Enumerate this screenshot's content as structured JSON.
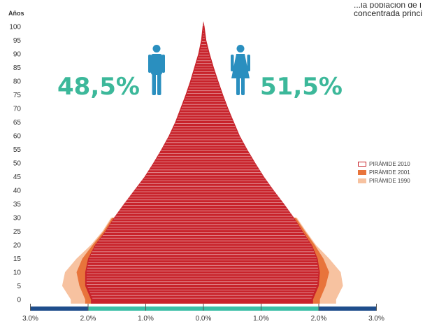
{
  "top_note": {
    "line1": "...la población de l",
    "line2": "concentrada princi"
  },
  "male": {
    "percent": "48,5%",
    "icon": "man-icon"
  },
  "female": {
    "percent": "51,5%",
    "icon": "woman-icon"
  },
  "colors": {
    "p2010": "#c8232b",
    "p2001": "#e8743b",
    "p1990": "#f7c2a0",
    "teal": "#3cb89a",
    "icon_blue": "#2a8fbf",
    "axis_dark": "#1f4e8c",
    "axis_teal": "#3bbfa6"
  },
  "chart_data": {
    "type": "population-pyramid",
    "ylabel": "Años",
    "yticks": [
      0,
      5,
      10,
      15,
      20,
      25,
      30,
      35,
      40,
      45,
      50,
      55,
      60,
      65,
      70,
      75,
      80,
      85,
      90,
      95,
      100
    ],
    "ylim": [
      0,
      102
    ],
    "xlim": [
      -3.0,
      3.0
    ],
    "xticks": [
      "3.0%",
      "2.0%",
      "1.0%",
      "0.0%",
      "1.0%",
      "2.0%",
      "3.0%"
    ],
    "legend": [
      "PIRÁMIDE 2010",
      "PIRÁMIDE 2001",
      "PIRÁMIDE 1990"
    ],
    "legend_position": "right",
    "series": [
      {
        "name": "PIRÁMIDE 1990",
        "age": [
          0,
          5,
          10,
          15,
          20,
          25,
          30
        ],
        "male": [
          2.3,
          2.45,
          2.4,
          2.2,
          1.95,
          1.75,
          1.6
        ],
        "female": [
          2.3,
          2.42,
          2.38,
          2.18,
          1.95,
          1.78,
          1.62
        ]
      },
      {
        "name": "PIRÁMIDE 2001",
        "age": [
          0,
          5,
          10,
          15,
          20,
          25,
          30
        ],
        "male": [
          2.05,
          2.15,
          2.2,
          2.1,
          1.92,
          1.73,
          1.58
        ],
        "female": [
          2.02,
          2.12,
          2.18,
          2.08,
          1.93,
          1.76,
          1.6
        ]
      },
      {
        "name": "PIRÁMIDE 2010",
        "age": [
          0,
          5,
          10,
          15,
          20,
          25,
          30,
          35,
          40,
          45,
          50,
          55,
          60,
          65,
          70,
          75,
          80,
          85,
          90,
          95,
          100,
          102
        ],
        "male": [
          1.95,
          2.05,
          2.05,
          2.0,
          1.88,
          1.7,
          1.55,
          1.38,
          1.2,
          1.02,
          0.87,
          0.73,
          0.6,
          0.49,
          0.4,
          0.31,
          0.23,
          0.16,
          0.09,
          0.04,
          0.015,
          0.0
        ],
        "female": [
          1.9,
          2.0,
          2.02,
          1.98,
          1.88,
          1.72,
          1.57,
          1.4,
          1.22,
          1.05,
          0.9,
          0.76,
          0.63,
          0.53,
          0.43,
          0.34,
          0.26,
          0.18,
          0.11,
          0.05,
          0.02,
          0.0
        ]
      }
    ]
  }
}
